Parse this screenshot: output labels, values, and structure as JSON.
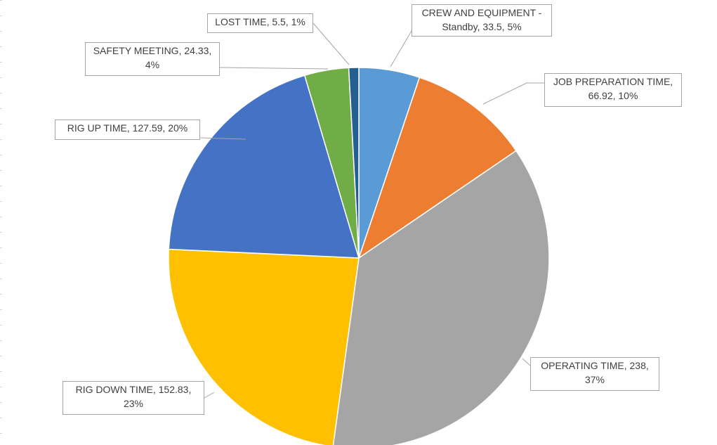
{
  "chart_data": {
    "type": "pie",
    "title": "",
    "slices": [
      {
        "category": "CREW AND EQUIPMENT - Standby",
        "value": 33.5,
        "percent_label": "5%",
        "color": "#5b9bd5",
        "label_lines": [
          "CREW AND EQUIPMENT -",
          "Standby, 33.5, 5%"
        ]
      },
      {
        "category": "JOB PREPARATION TIME",
        "value": 66.92,
        "percent_label": "10%",
        "color": "#ed7d31",
        "label_lines": [
          "JOB PREPARATION TIME,",
          "66.92, 10%"
        ]
      },
      {
        "category": "OPERATING TIME",
        "value": 238,
        "percent_label": "37%",
        "color": "#a5a5a5",
        "label_lines": [
          "OPERATING TIME, 238,",
          "37%"
        ]
      },
      {
        "category": "RIG DOWN TIME",
        "value": 152.83,
        "percent_label": "23%",
        "color": "#ffc000",
        "label_lines": [
          "RIG DOWN TIME, 152.83,",
          "23%"
        ]
      },
      {
        "category": "RIG UP TIME",
        "value": 127.59,
        "percent_label": "20%",
        "color": "#4472c4",
        "label_lines": [
          "RIG UP TIME, 127.59, 20%"
        ]
      },
      {
        "category": "SAFETY MEETING",
        "value": 24.33,
        "percent_label": "4%",
        "color": "#70ad47",
        "label_lines": [
          "SAFETY MEETING, 24.33,",
          "4%"
        ]
      },
      {
        "category": "LOST TIME",
        "value": 5.5,
        "percent_label": "1%",
        "color": "#255e91",
        "label_lines": [
          "LOST TIME, 5.5, 1%"
        ]
      }
    ],
    "legend": "none",
    "data_labels": "callout"
  }
}
